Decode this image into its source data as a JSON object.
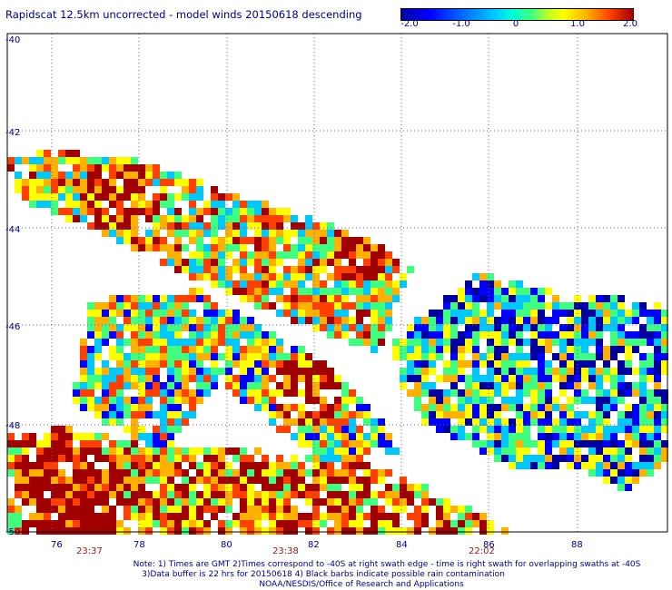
{
  "title": "Rapidscat 12.5km uncorrected - model winds 20150618 descending",
  "colorbar": {
    "tick_labels": [
      "-2.0",
      "-1.0",
      "0",
      "1.0",
      "2.0"
    ],
    "colors": [
      "#0000a0",
      "#0000ff",
      "#00c8ff",
      "#40ff80",
      "#ffff00",
      "#ffb000",
      "#ff4000",
      "#a00000"
    ]
  },
  "map": {
    "lat_labels": [
      "-40",
      "-42",
      "-44",
      "-46",
      "-48",
      "-50"
    ],
    "lon_labels": [
      "76",
      "78",
      "80",
      "82",
      "84",
      "86",
      "88"
    ],
    "time_labels": [
      "23:37",
      "23:38",
      "22:02"
    ],
    "time_color": "#8b1a1a",
    "label_color": "#000080"
  },
  "footer": {
    "line1": "Note: 1) Times are GMT 2)Times correspond to -40S at right swath edge - time is right swath for overlapping swaths at -40S",
    "line2": "3)Data buffer is 22 hrs for 20150618 4) Black barbs indicate possible rain contamination",
    "line3": "NOAA/NESDIS/Office of Research and Applications"
  }
}
